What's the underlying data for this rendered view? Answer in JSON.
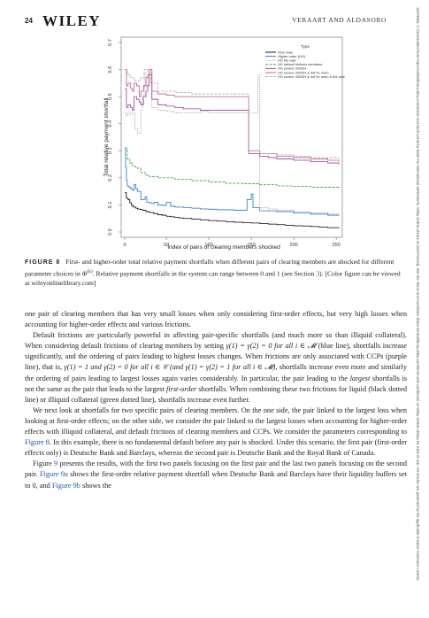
{
  "header": {
    "page_number": "24",
    "brand": "WILEY",
    "authors": "VERAART AND ALDASORO"
  },
  "sidebar_text": "14679965, 0, Downloaded from https://onlinelibrary.wiley.com/doi/10.1111/mafi.12446 by Bank For International Settlements, Wiley Online Library on [01/07/2024]. See the Terms and Conditions (https://onlinelibrary.wiley.com/terms-and-conditions) on Wiley Online Library for rules of use; OA articles are governed by the applicable Creative Commons License",
  "chart_data": {
    "type": "line",
    "xlabel": "Index of pairs of clearing members shocked",
    "ylabel": "Total relative payment shortfall",
    "xlim": [
      1,
      253
    ],
    "ylim": [
      0.0,
      0.7
    ],
    "x_ticks": [
      "0",
      "50",
      "100",
      "150",
      "200",
      "250"
    ],
    "y_ticks": [
      "0.0",
      "0.1",
      "0.2",
      "0.3",
      "0.4",
      "0.5",
      "0.6",
      "0.7"
    ],
    "legend_title": "Type",
    "legend_placement": "top-right",
    "series": [
      {
        "name": "First order",
        "color": "#000000",
        "dash": "solid",
        "points": [
          [
            1,
            0.145
          ],
          [
            3,
            0.125
          ],
          [
            5,
            0.12
          ],
          [
            7,
            0.108
          ],
          [
            9,
            0.098
          ],
          [
            11,
            0.092
          ],
          [
            14,
            0.088
          ],
          [
            16,
            0.085
          ],
          [
            19,
            0.083
          ],
          [
            22,
            0.08
          ],
          [
            26,
            0.075
          ],
          [
            30,
            0.072
          ],
          [
            35,
            0.068
          ],
          [
            40,
            0.064
          ],
          [
            45,
            0.062
          ],
          [
            50,
            0.058
          ],
          [
            55,
            0.056
          ],
          [
            60,
            0.054
          ],
          [
            65,
            0.052
          ],
          [
            70,
            0.05
          ],
          [
            80,
            0.047
          ],
          [
            90,
            0.045
          ],
          [
            100,
            0.042
          ],
          [
            110,
            0.04
          ],
          [
            120,
            0.038
          ],
          [
            130,
            0.036
          ],
          [
            140,
            0.034
          ],
          [
            150,
            0.033
          ],
          [
            160,
            0.031
          ],
          [
            170,
            0.029
          ],
          [
            180,
            0.027
          ],
          [
            190,
            0.025
          ],
          [
            200,
            0.023
          ],
          [
            210,
            0.022
          ],
          [
            220,
            0.02
          ],
          [
            230,
            0.018
          ],
          [
            240,
            0.016
          ],
          [
            253,
            0.014
          ]
        ]
      },
      {
        "name": "Higher order (HO)",
        "color": "#1f77d4",
        "dash": "solid",
        "points": [
          [
            1,
            0.31
          ],
          [
            2,
            0.24
          ],
          [
            3,
            0.19
          ],
          [
            4,
            0.17
          ],
          [
            6,
            0.165
          ],
          [
            8,
            0.16
          ],
          [
            10,
            0.155
          ],
          [
            12,
            0.175
          ],
          [
            14,
            0.16
          ],
          [
            16,
            0.15
          ],
          [
            18,
            0.15
          ],
          [
            20,
            0.12
          ],
          [
            23,
            0.12
          ],
          [
            25,
            0.13
          ],
          [
            27,
            0.11
          ],
          [
            30,
            0.108
          ],
          [
            33,
            0.105
          ],
          [
            36,
            0.11
          ],
          [
            40,
            0.1
          ],
          [
            45,
            0.098
          ],
          [
            50,
            0.11
          ],
          [
            55,
            0.095
          ],
          [
            60,
            0.092
          ],
          [
            70,
            0.09
          ],
          [
            80,
            0.088
          ],
          [
            90,
            0.085
          ],
          [
            100,
            0.084
          ],
          [
            110,
            0.082
          ],
          [
            120,
            0.082
          ],
          [
            130,
            0.08
          ],
          [
            140,
            0.08
          ],
          [
            145,
            0.12
          ],
          [
            150,
            0.14
          ],
          [
            152,
            0.09
          ],
          [
            160,
            0.078
          ],
          [
            180,
            0.075
          ],
          [
            200,
            0.07
          ],
          [
            220,
            0.066
          ],
          [
            240,
            0.062
          ],
          [
            253,
            0.06
          ]
        ]
      },
      {
        "name": "HO fire sale",
        "color": "#888888",
        "dash": "dotted",
        "points": [
          [
            1,
            0.44
          ],
          [
            3,
            0.43
          ],
          [
            5,
            0.44
          ],
          [
            8,
            0.435
          ],
          [
            10,
            0.44
          ],
          [
            13,
            0.38
          ],
          [
            16,
            0.365
          ],
          [
            20,
            0.45
          ],
          [
            22,
            0.5
          ],
          [
            24,
            0.59
          ],
          [
            26,
            0.54
          ],
          [
            28,
            0.57
          ],
          [
            30,
            0.6
          ],
          [
            33,
            0.46
          ],
          [
            40,
            0.45
          ],
          [
            50,
            0.445
          ],
          [
            60,
            0.44
          ],
          [
            70,
            0.44
          ],
          [
            80,
            0.44
          ],
          [
            90,
            0.445
          ],
          [
            100,
            0.44
          ],
          [
            110,
            0.44
          ],
          [
            120,
            0.44
          ],
          [
            130,
            0.44
          ],
          [
            140,
            0.44
          ],
          [
            150,
            0.44
          ],
          [
            158,
            0.58
          ],
          [
            160,
            0.09
          ],
          [
            170,
            0.085
          ],
          [
            180,
            0.08
          ],
          [
            200,
            0.075
          ],
          [
            220,
            0.07
          ],
          [
            240,
            0.066
          ],
          [
            253,
            0.064
          ]
        ]
      },
      {
        "name": "HO default frictions members",
        "color": "#2a9a2a",
        "dash": "dashed",
        "points": [
          [
            1,
            0.31
          ],
          [
            4,
            0.27
          ],
          [
            7,
            0.255
          ],
          [
            10,
            0.245
          ],
          [
            13,
            0.24
          ],
          [
            16,
            0.235
          ],
          [
            20,
            0.22
          ],
          [
            25,
            0.21
          ],
          [
            30,
            0.205
          ],
          [
            40,
            0.2
          ],
          [
            60,
            0.195
          ],
          [
            80,
            0.19
          ],
          [
            100,
            0.185
          ],
          [
            120,
            0.18
          ],
          [
            140,
            0.178
          ],
          [
            160,
            0.175
          ],
          [
            180,
            0.17
          ],
          [
            200,
            0.168
          ],
          [
            220,
            0.165
          ],
          [
            253,
            0.16
          ]
        ]
      },
      {
        "name": "HO severe VM/DH",
        "color": "#9b3c9b",
        "dash": "solid",
        "points": [
          [
            1,
            0.53
          ],
          [
            3,
            0.46
          ],
          [
            5,
            0.47
          ],
          [
            8,
            0.46
          ],
          [
            10,
            0.45
          ],
          [
            12,
            0.5
          ],
          [
            15,
            0.49
          ],
          [
            18,
            0.48
          ],
          [
            20,
            0.47
          ],
          [
            23,
            0.5
          ],
          [
            26,
            0.52
          ],
          [
            28,
            0.54
          ],
          [
            30,
            0.58
          ],
          [
            33,
            0.49
          ],
          [
            40,
            0.47
          ],
          [
            50,
            0.465
          ],
          [
            60,
            0.46
          ],
          [
            70,
            0.455
          ],
          [
            80,
            0.455
          ],
          [
            90,
            0.45
          ],
          [
            100,
            0.45
          ],
          [
            110,
            0.45
          ],
          [
            120,
            0.45
          ],
          [
            130,
            0.45
          ],
          [
            140,
            0.45
          ],
          [
            146,
            0.45
          ],
          [
            147,
            0.29
          ],
          [
            160,
            0.28
          ],
          [
            170,
            0.275
          ],
          [
            180,
            0.27
          ],
          [
            200,
            0.265
          ],
          [
            220,
            0.26
          ],
          [
            240,
            0.255
          ],
          [
            253,
            0.25
          ]
        ]
      },
      {
        "name": "HO severe VM/DH & def frc mem",
        "color": "#c4558a",
        "dash": "solid",
        "points": [
          [
            1,
            0.6
          ],
          [
            3,
            0.54
          ],
          [
            5,
            0.55
          ],
          [
            8,
            0.53
          ],
          [
            10,
            0.52
          ],
          [
            12,
            0.55
          ],
          [
            15,
            0.54
          ],
          [
            18,
            0.5
          ],
          [
            20,
            0.52
          ],
          [
            23,
            0.54
          ],
          [
            26,
            0.57
          ],
          [
            28,
            0.58
          ],
          [
            30,
            0.6
          ],
          [
            33,
            0.52
          ],
          [
            40,
            0.51
          ],
          [
            50,
            0.505
          ],
          [
            60,
            0.5
          ],
          [
            70,
            0.5
          ],
          [
            80,
            0.5
          ],
          [
            90,
            0.5
          ],
          [
            100,
            0.5
          ],
          [
            120,
            0.5
          ],
          [
            140,
            0.5
          ],
          [
            146,
            0.5
          ],
          [
            147,
            0.3
          ],
          [
            160,
            0.29
          ],
          [
            180,
            0.28
          ],
          [
            200,
            0.275
          ],
          [
            220,
            0.27
          ],
          [
            240,
            0.265
          ],
          [
            253,
            0.26
          ]
        ]
      },
      {
        "name": "HO severe VM/DH & def frc mem & fire sale",
        "color": "#aaaaaa",
        "dash": "dashed",
        "points": [
          [
            1,
            0.6
          ],
          [
            4,
            0.58
          ],
          [
            8,
            0.57
          ],
          [
            12,
            0.56
          ],
          [
            16,
            0.56
          ],
          [
            20,
            0.57
          ],
          [
            24,
            0.6
          ],
          [
            28,
            0.59
          ],
          [
            32,
            0.55
          ],
          [
            40,
            0.52
          ],
          [
            60,
            0.515
          ],
          [
            80,
            0.51
          ],
          [
            100,
            0.51
          ],
          [
            120,
            0.51
          ],
          [
            140,
            0.51
          ],
          [
            146,
            0.51
          ],
          [
            147,
            0.3
          ],
          [
            160,
            0.29
          ],
          [
            180,
            0.285
          ],
          [
            200,
            0.28
          ],
          [
            220,
            0.275
          ],
          [
            253,
            0.27
          ]
        ]
      }
    ]
  },
  "caption": {
    "label": "FIGURE 8",
    "text_1": "First- and higher-order total relative payment shortfalls when different pairs of clearing members are shocked for different parameter choices in Φ",
    "sup": "(k)",
    "text_2": ". Relative payment shortfalls in the system can range between 0 and 1 (see Section ",
    "section_link": "3",
    "text_3": "). [Color figure can be viewed at wileyonlinelibrary.com]"
  },
  "body": {
    "p1": "one pair of clearing members that has very small losses when only considering first-order effects, but very high losses when accounting for higher-order effects and various frictions.",
    "p2a": "Default frictions are particularly powerful in affecting pair-specific shortfalls (and much more so than illiquid collateral). When considering default frictions of clearing members by setting ",
    "p2_eq1": "γ(1) = γ(2) = 0 for all i ∈ 𝓜",
    "p2b": " (blue line), shortfalls increase significantly, and the ordering of pairs leading to highest losses changes. When frictions are only associated with CCPs (purple line), that is, ",
    "p2_eq2": "γ(1) = 1 and γ(2) = 0 for all i ∈ 𝒞 (and γ(1) = γ(2) = 1 for all i ∈ 𝓜)",
    "p2c": ", shortfalls increase even more and similarly the ordering of pairs leading to largest losses again varies considerably. In particular, the pair leading to the ",
    "p2_em1": "largest",
    "p2d": " shortfalls is not the same as the pair that leads to the largest ",
    "p2_em2": "first-order",
    "p2e": " shortfalls. When combining these two frictions for liquid (black dotted line) or illiquid collateral (green dotted line), shortfalls increase even further.",
    "p3a": "We next look at shortfalls for two specific pairs of clearing members. On the one side, the pair linked to the largest loss when looking at first-order effects; on the other side, we consider the pair linked to the largest losses when accounting for higher-order effects with illiquid collateral, and default frictions of clearing members and CCPs. We consider the parameters corresponding to ",
    "p3_link": "Figure 8",
    "p3b": ". In this example, there is no fundamental default before any pair is shocked. Under this scenario, the first pair (first-order effects only) is Deutsche Bank and Barclays, whereas the second pair is Deutsche Bank and the Royal Bank of Canada.",
    "p4a": "Figure ",
    "p4_link1": "9",
    "p4b": " presents the results, with the first two panels focusing on the first pair and the last two panels focusing on the second pair. ",
    "p4_link2": "Figure 9a",
    "p4c": " shows the first-order relative payment shortfall when Deutsche Bank and Barclays have their liquidity buffers set to 0, and ",
    "p4_link3": "Figure 9b",
    "p4d": " shows the"
  }
}
